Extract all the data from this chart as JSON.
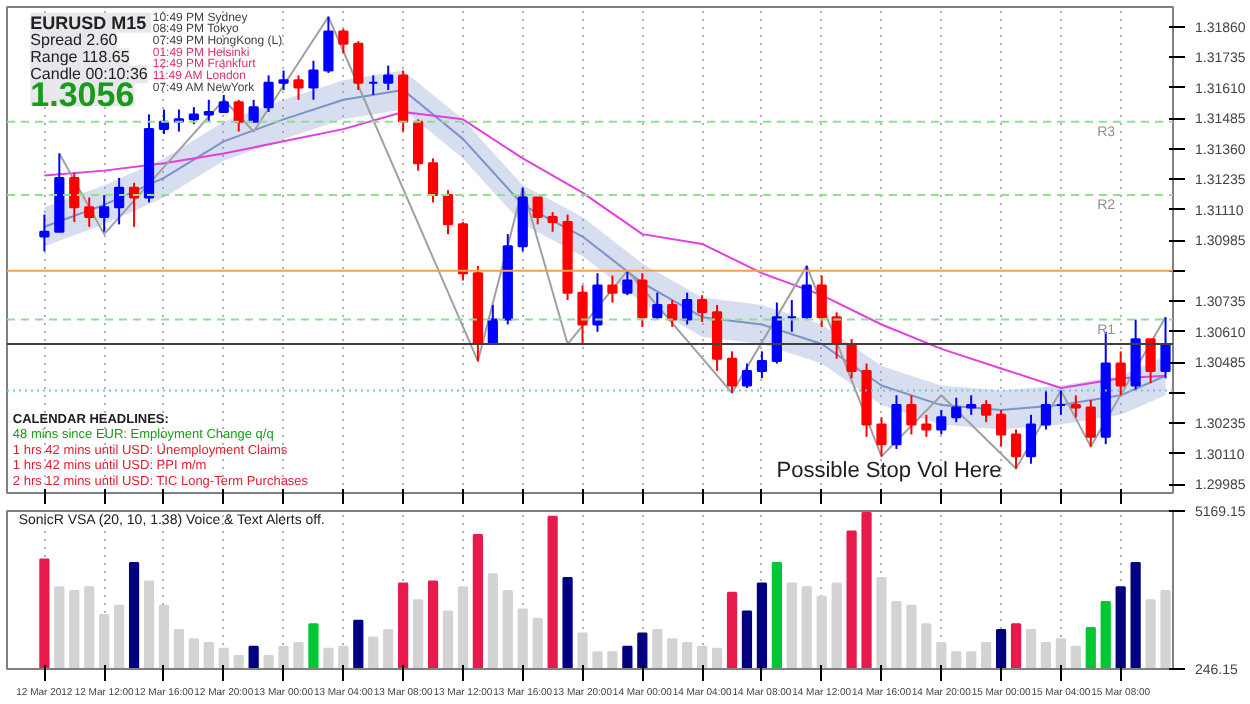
{
  "chart_data": [
    {
      "type": "candlestick",
      "title": "EURUSD  M15",
      "annotations": [
        "Spread 2.60",
        "Range 118.65",
        "Candle 00:10:36",
        "1.3056",
        "10:49 PM Sydney",
        "08:49 PM Tokyo",
        "07:49 PM HongKong (L)",
        "01:49 PM Helsinki",
        "12:49 PM Frankfurt",
        "11:49 AM London",
        "07:49 AM NewYork",
        "CALENDAR HEADLINES:",
        "48 mins since EUR: Employment Change q/q",
        "1 hrs 42 mins until USD: Unemployment Claims",
        "1 hrs 42 mins until USD: PPI m/m",
        "2 hrs 12 mins until USD: TIC Long-Term Purchases",
        "Possible Stop Vol Here"
      ],
      "x": [
        "2012-03-12T08:00",
        "2012-03-12T09:00",
        "2012-03-12T10:00",
        "2012-03-12T11:00",
        "2012-03-12T12:00",
        "2012-03-12T13:00",
        "2012-03-12T14:00",
        "2012-03-12T15:00",
        "2012-03-12T16:00",
        "2012-03-12T17:00",
        "2012-03-12T18:00",
        "2012-03-12T19:00",
        "2012-03-12T20:00",
        "2012-03-12T21:00",
        "2012-03-12T22:00",
        "2012-03-12T23:00",
        "2012-03-13T00:00",
        "2012-03-13T01:00",
        "2012-03-13T02:00",
        "2012-03-13T03:00",
        "2012-03-13T04:00",
        "2012-03-13T05:00",
        "2012-03-13T06:00",
        "2012-03-13T07:00",
        "2012-03-13T08:00",
        "2012-03-13T09:00",
        "2012-03-13T10:00",
        "2012-03-13T11:00",
        "2012-03-13T12:00",
        "2012-03-13T13:00",
        "2012-03-13T14:00",
        "2012-03-13T15:00",
        "2012-03-13T16:00",
        "2012-03-13T17:00",
        "2012-03-13T18:00",
        "2012-03-13T19:00",
        "2012-03-13T20:00",
        "2012-03-13T21:00",
        "2012-03-13T22:00",
        "2012-03-13T23:00",
        "2012-03-14T00:00",
        "2012-03-14T01:00",
        "2012-03-14T02:00",
        "2012-03-14T03:00",
        "2012-03-14T04:00",
        "2012-03-14T05:00",
        "2012-03-14T06:00",
        "2012-03-14T07:00",
        "2012-03-14T08:00",
        "2012-03-14T09:00",
        "2012-03-14T10:00",
        "2012-03-14T11:00",
        "2012-03-14T12:00",
        "2012-03-14T13:00",
        "2012-03-14T14:00",
        "2012-03-14T15:00",
        "2012-03-14T16:00",
        "2012-03-14T17:00",
        "2012-03-14T18:00",
        "2012-03-14T19:00",
        "2012-03-14T20:00",
        "2012-03-14T21:00",
        "2012-03-14T22:00",
        "2012-03-14T23:00",
        "2012-03-15T00:00",
        "2012-03-15T01:00",
        "2012-03-15T02:00",
        "2012-03-15T03:00",
        "2012-03-15T04:00",
        "2012-03-15T05:00",
        "2012-03-15T06:00",
        "2012-03-15T07:00",
        "2012-03-15T08:00",
        "2012-03-15T09:00",
        "2012-03-15T10:00",
        "2012-03-15T11:00"
      ],
      "ohlc": [
        [
          1.31,
          1.3109,
          1.3094,
          1.3102
        ],
        [
          1.3102,
          1.3134,
          1.3102,
          1.3124
        ],
        [
          1.3124,
          1.3126,
          1.3106,
          1.3112
        ],
        [
          1.3112,
          1.3116,
          1.3104,
          1.3108
        ],
        [
          1.3108,
          1.3117,
          1.3102,
          1.3112
        ],
        [
          1.3112,
          1.3124,
          1.3105,
          1.312
        ],
        [
          1.312,
          1.3122,
          1.3104,
          1.3116
        ],
        [
          1.3116,
          1.315,
          1.3114,
          1.3144
        ],
        [
          1.3144,
          1.3152,
          1.3142,
          1.3147
        ],
        [
          1.3147,
          1.3152,
          1.3143,
          1.3148
        ],
        [
          1.3148,
          1.3153,
          1.3146,
          1.315
        ],
        [
          1.315,
          1.3156,
          1.3147,
          1.3151
        ],
        [
          1.3151,
          1.3158,
          1.3151,
          1.3155
        ],
        [
          1.3155,
          1.3156,
          1.3143,
          1.3147
        ],
        [
          1.3147,
          1.3156,
          1.3147,
          1.3153
        ],
        [
          1.3153,
          1.3166,
          1.3151,
          1.3163
        ],
        [
          1.3163,
          1.3168,
          1.316,
          1.3164
        ],
        [
          1.3164,
          1.3166,
          1.3156,
          1.3161
        ],
        [
          1.3161,
          1.3172,
          1.3156,
          1.3168
        ],
        [
          1.3168,
          1.319,
          1.3167,
          1.3184
        ],
        [
          1.3184,
          1.3185,
          1.3175,
          1.3179
        ],
        [
          1.3179,
          1.318,
          1.316,
          1.3163
        ],
        [
          1.3163,
          1.3166,
          1.3158,
          1.3163
        ],
        [
          1.3163,
          1.317,
          1.316,
          1.3166
        ],
        [
          1.3166,
          1.3168,
          1.3143,
          1.3147
        ],
        [
          1.3147,
          1.3148,
          1.3127,
          1.313
        ],
        [
          1.313,
          1.3132,
          1.3114,
          1.3117
        ],
        [
          1.3117,
          1.3119,
          1.3101,
          1.3105
        ],
        [
          1.3105,
          1.3106,
          1.3082,
          1.3085
        ],
        [
          1.3085,
          1.3088,
          1.3049,
          1.3056
        ],
        [
          1.3056,
          1.3072,
          1.3056,
          1.3066
        ],
        [
          1.3066,
          1.3101,
          1.3064,
          1.3096
        ],
        [
          1.3096,
          1.312,
          1.3094,
          1.3116
        ],
        [
          1.3116,
          1.3116,
          1.3105,
          1.3108
        ],
        [
          1.3108,
          1.311,
          1.3102,
          1.3106
        ],
        [
          1.3106,
          1.3109,
          1.3074,
          1.3077
        ],
        [
          1.3077,
          1.308,
          1.3056,
          1.3064
        ],
        [
          1.3064,
          1.3085,
          1.3061,
          1.308
        ],
        [
          1.308,
          1.3084,
          1.3073,
          1.3077
        ],
        [
          1.3077,
          1.3086,
          1.3076,
          1.3082
        ],
        [
          1.3082,
          1.3085,
          1.3063,
          1.3067
        ],
        [
          1.3067,
          1.3077,
          1.3066,
          1.3072
        ],
        [
          1.3072,
          1.3074,
          1.3063,
          1.3066
        ],
        [
          1.3066,
          1.3077,
          1.3064,
          1.3074
        ],
        [
          1.3074,
          1.3076,
          1.3065,
          1.3069
        ],
        [
          1.3069,
          1.3072,
          1.3045,
          1.305
        ],
        [
          1.305,
          1.3053,
          1.3036,
          1.3039
        ],
        [
          1.3039,
          1.3048,
          1.3038,
          1.3045
        ],
        [
          1.3045,
          1.3053,
          1.3042,
          1.3049
        ],
        [
          1.3049,
          1.3073,
          1.3048,
          1.3067
        ],
        [
          1.3067,
          1.3074,
          1.3061,
          1.3067
        ],
        [
          1.3067,
          1.3088,
          1.3066,
          1.308
        ],
        [
          1.308,
          1.3084,
          1.3063,
          1.3067
        ],
        [
          1.3067,
          1.3069,
          1.305,
          1.3056
        ],
        [
          1.3056,
          1.3058,
          1.3042,
          1.3045
        ],
        [
          1.3045,
          1.3048,
          1.3018,
          1.3023
        ],
        [
          1.3023,
          1.3026,
          1.301,
          1.3015
        ],
        [
          1.3015,
          1.3035,
          1.3013,
          1.3031
        ],
        [
          1.3031,
          1.3035,
          1.3019,
          1.3023
        ],
        [
          1.3023,
          1.3027,
          1.3018,
          1.3021
        ],
        [
          1.3021,
          1.3029,
          1.3019,
          1.3026
        ],
        [
          1.3026,
          1.3034,
          1.3024,
          1.303
        ],
        [
          1.303,
          1.3035,
          1.3027,
          1.3031
        ],
        [
          1.3031,
          1.3033,
          1.3024,
          1.3027
        ],
        [
          1.3027,
          1.3029,
          1.3014,
          1.3019
        ],
        [
          1.3019,
          1.3021,
          1.3005,
          1.301
        ],
        [
          1.301,
          1.3027,
          1.3007,
          1.3023
        ],
        [
          1.3023,
          1.3037,
          1.3021,
          1.3031
        ],
        [
          1.3031,
          1.3037,
          1.3027,
          1.3031
        ],
        [
          1.3031,
          1.3035,
          1.3026,
          1.303
        ],
        [
          1.303,
          1.3033,
          1.3014,
          1.3018
        ],
        [
          1.3018,
          1.3061,
          1.3015,
          1.3048
        ],
        [
          1.3048,
          1.3053,
          1.3035,
          1.3039
        ],
        [
          1.3039,
          1.3066,
          1.3037,
          1.3058
        ],
        [
          1.3058,
          1.3058,
          1.304,
          1.3045
        ],
        [
          1.3045,
          1.3067,
          1.3042,
          1.3056
        ]
      ],
      "colors": [
        "#0000ff",
        "#0000ff",
        "#ff0000",
        "#ff0000",
        "#0000ff",
        "#0000ff",
        "#ff0000",
        "#0000ff",
        "#0000ff",
        "#0000ff",
        "#0000ff",
        "#0000ff",
        "#0000ff",
        "#ff0000",
        "#0000ff",
        "#0000ff",
        "#0000ff",
        "#ff0000",
        "#0000ff",
        "#0000ff",
        "#ff0000",
        "#ff0000",
        "#0000ff",
        "#0000ff",
        "#ff0000",
        "#ff0000",
        "#ff0000",
        "#ff0000",
        "#ff0000",
        "#ff0000",
        "#0000ff",
        "#0000ff",
        "#0000ff",
        "#ff0000",
        "#ff0000",
        "#ff0000",
        "#ff0000",
        "#0000ff",
        "#ff0000",
        "#0000ff",
        "#ff0000",
        "#0000ff",
        "#ff0000",
        "#0000ff",
        "#ff0000",
        "#ff0000",
        "#ff0000",
        "#0000ff",
        "#0000ff",
        "#0000ff",
        "#0000ff",
        "#0000ff",
        "#ff0000",
        "#ff0000",
        "#ff0000",
        "#ff0000",
        "#ff0000",
        "#0000ff",
        "#ff0000",
        "#ff0000",
        "#0000ff",
        "#0000ff",
        "#0000ff",
        "#ff0000",
        "#ff0000",
        "#ff0000",
        "#0000ff",
        "#0000ff",
        "#0000ff",
        "#ff0000",
        "#ff0000",
        "#0000ff",
        "#ff0000",
        "#0000ff",
        "#ff0000",
        "#0000ff"
      ],
      "series": [
        {
          "type": "line",
          "color": "#7b93c9",
          "x": [
            "2012-03-12T08:00",
            "2012-03-12T12:00",
            "2012-03-12T16:00",
            "2012-03-12T20:00",
            "2012-03-13T00:00",
            "2012-03-13T04:00",
            "2012-03-13T08:00",
            "2012-03-13T12:00",
            "2012-03-13T16:00",
            "2012-03-13T20:00",
            "2012-03-14T00:00",
            "2012-03-14T04:00",
            "2012-03-14T08:00",
            "2012-03-14T12:00",
            "2012-03-14T16:00",
            "2012-03-14T20:00",
            "2012-03-15T00:00",
            "2012-03-15T04:00",
            "2012-03-15T08:00",
            "2012-03-15T11:00"
          ],
          "values": [
            1.3104,
            1.3113,
            1.3124,
            1.3139,
            1.3148,
            1.3156,
            1.316,
            1.314,
            1.3113,
            1.31,
            1.3081,
            1.3067,
            1.3064,
            1.3056,
            1.3039,
            1.3031,
            1.3029,
            1.3031,
            1.3035,
            1.3043
          ],
          "lower": [
            1.3096,
            1.3105,
            1.3116,
            1.3131,
            1.314,
            1.3148,
            1.3152,
            1.3132,
            1.3105,
            1.3092,
            1.3073,
            1.3059,
            1.3056,
            1.3048,
            1.3031,
            1.3023,
            1.3021,
            1.3023,
            1.3027,
            1.3035
          ],
          "upper": [
            1.3112,
            1.3121,
            1.3132,
            1.3147,
            1.3156,
            1.3164,
            1.3168,
            1.3148,
            1.3121,
            1.3108,
            1.3089,
            1.3075,
            1.3072,
            1.3064,
            1.3047,
            1.3039,
            1.3037,
            1.3039,
            1.3043,
            1.3051
          ]
        },
        {
          "type": "line",
          "color": "#e040e0",
          "x": [
            "2012-03-12T08:00",
            "2012-03-12T12:00",
            "2012-03-12T16:00",
            "2012-03-12T20:00",
            "2012-03-13T00:00",
            "2012-03-13T04:00",
            "2012-03-13T08:00",
            "2012-03-13T12:00",
            "2012-03-13T16:00",
            "2012-03-13T20:00",
            "2012-03-14T00:00",
            "2012-03-14T04:00",
            "2012-03-14T08:00",
            "2012-03-14T12:00",
            "2012-03-14T16:00",
            "2012-03-14T20:00",
            "2012-03-15T00:00",
            "2012-03-15T04:00",
            "2012-03-15T08:00",
            "2012-03-15T11:00"
          ],
          "values": [
            1.3125,
            1.3127,
            1.313,
            1.3134,
            1.3139,
            1.3144,
            1.3151,
            1.3148,
            1.3132,
            1.3118,
            1.3101,
            1.3097,
            1.3085,
            1.3076,
            1.3064,
            1.3054,
            1.3046,
            1.3038,
            1.3042,
            1.3043
          ]
        },
        {
          "type": "line",
          "color": "#a0a0a0",
          "x": [
            "2012-03-12T09:00",
            "2012-03-12T12:00",
            "2012-03-12T20:00",
            "2012-03-12T22:00",
            "2012-03-13T03:00",
            "2012-03-13T13:00",
            "2012-03-13T16:00",
            "2012-03-13T19:00",
            "2012-03-13T23:00",
            "2012-03-14T06:00",
            "2012-03-14T11:00",
            "2012-03-14T16:00",
            "2012-03-14T20:00",
            "2012-03-15T01:00",
            "2012-03-15T04:00",
            "2012-03-15T06:00",
            "2012-03-15T11:00"
          ],
          "values": [
            1.3134,
            1.3101,
            1.3156,
            1.3143,
            1.319,
            1.3049,
            1.312,
            1.3056,
            1.3086,
            1.3036,
            1.3088,
            1.301,
            1.3035,
            1.3005,
            1.3037,
            1.3014,
            1.3067
          ]
        }
      ],
      "ref_lines": [
        {
          "axis": "y",
          "value": 1.3147,
          "label": "R3",
          "color": "#90e090",
          "line_style": "dashed"
        },
        {
          "axis": "y",
          "value": 1.3117,
          "label": "R2",
          "color": "#90e090",
          "line_style": "dashed"
        },
        {
          "axis": "y",
          "value": 1.3086,
          "color": "#f0a050"
        },
        {
          "axis": "y",
          "value": 1.3066,
          "label": "R1",
          "color": "#90e090",
          "line_style": "dashed"
        },
        {
          "axis": "y",
          "value": 1.3056,
          "color": "#404040"
        },
        {
          "axis": "y",
          "value": 1.3037,
          "color": "#70c8e0",
          "line_style": "dotted"
        }
      ],
      "xlim": [
        "2012-03-12T05:30",
        "2012-03-15T11:30"
      ],
      "ylim": [
        1.2995,
        1.3194
      ],
      "xticks": [
        {
          "value": "2012-03-12T08:00",
          "label": null
        },
        {
          "value": "2012-03-12T12:00",
          "label": null
        },
        {
          "value": "2012-03-12T16:00",
          "label": null
        },
        {
          "value": "2012-03-12T20:00",
          "label": null
        },
        {
          "value": "2012-03-13T00:00",
          "label": null
        },
        {
          "value": "2012-03-13T04:00",
          "label": null
        },
        {
          "value": "2012-03-13T08:00",
          "label": null
        },
        {
          "value": "2012-03-13T12:00",
          "label": null
        },
        {
          "value": "2012-03-13T16:00",
          "label": null
        },
        {
          "value": "2012-03-13T20:00",
          "label": null
        },
        {
          "value": "2012-03-14T00:00",
          "label": null
        },
        {
          "value": "2012-03-14T04:00",
          "label": null
        },
        {
          "value": "2012-03-14T08:00",
          "label": null
        },
        {
          "value": "2012-03-14T12:00",
          "label": null
        },
        {
          "value": "2012-03-14T16:00",
          "label": null
        },
        {
          "value": "2012-03-14T20:00",
          "label": null
        },
        {
          "value": "2012-03-15T00:00",
          "label": null
        },
        {
          "value": "2012-03-15T04:00",
          "label": null
        },
        {
          "value": "2012-03-15T08:00",
          "label": null
        }
      ],
      "yticks": [
        {
          "value": 1.3186,
          "label": "1.31860"
        },
        {
          "value": 1.31735,
          "label": "1.31735"
        },
        {
          "value": 1.3161,
          "label": "1.31610"
        },
        {
          "value": 1.31485,
          "label": "1.31485"
        },
        {
          "value": 1.3136,
          "label": "1.31360"
        },
        {
          "value": 1.31235,
          "label": "1.31235"
        },
        {
          "value": 1.3111,
          "label": "1.31110"
        },
        {
          "value": 1.30985,
          "label": "1.30985"
        },
        {
          "value": 1.3086,
          "label": null
        },
        {
          "value": 1.30735,
          "label": "1.30735"
        },
        {
          "value": 1.3061,
          "label": "1.30610"
        },
        {
          "value": 1.30485,
          "label": "1.30485"
        },
        {
          "value": 1.3036,
          "label": null
        },
        {
          "value": 1.30235,
          "label": "1.30235"
        },
        {
          "value": 1.3011,
          "label": "1.30110"
        },
        {
          "value": 1.29985,
          "label": "1.29985"
        }
      ],
      "tick_labels": "y",
      "grid": "x"
    },
    {
      "type": "bar",
      "title": "SonicR VSA (20, 10, 1.38)  Voice & Text Alerts off.",
      "x": [
        "2012-03-12T08:00",
        "2012-03-12T09:00",
        "2012-03-12T10:00",
        "2012-03-12T11:00",
        "2012-03-12T12:00",
        "2012-03-12T13:00",
        "2012-03-12T14:00",
        "2012-03-12T15:00",
        "2012-03-12T16:00",
        "2012-03-12T17:00",
        "2012-03-12T18:00",
        "2012-03-12T19:00",
        "2012-03-12T20:00",
        "2012-03-12T21:00",
        "2012-03-12T22:00",
        "2012-03-12T23:00",
        "2012-03-13T00:00",
        "2012-03-13T01:00",
        "2012-03-13T02:00",
        "2012-03-13T03:00",
        "2012-03-13T04:00",
        "2012-03-13T05:00",
        "2012-03-13T06:00",
        "2012-03-13T07:00",
        "2012-03-13T08:00",
        "2012-03-13T09:00",
        "2012-03-13T10:00",
        "2012-03-13T11:00",
        "2012-03-13T12:00",
        "2012-03-13T13:00",
        "2012-03-13T14:00",
        "2012-03-13T15:00",
        "2012-03-13T16:00",
        "2012-03-13T17:00",
        "2012-03-13T18:00",
        "2012-03-13T19:00",
        "2012-03-13T20:00",
        "2012-03-13T21:00",
        "2012-03-13T22:00",
        "2012-03-13T23:00",
        "2012-03-14T00:00",
        "2012-03-14T01:00",
        "2012-03-14T02:00",
        "2012-03-14T03:00",
        "2012-03-14T04:00",
        "2012-03-14T05:00",
        "2012-03-14T06:00",
        "2012-03-14T07:00",
        "2012-03-14T08:00",
        "2012-03-14T09:00",
        "2012-03-14T10:00",
        "2012-03-14T11:00",
        "2012-03-14T12:00",
        "2012-03-14T13:00",
        "2012-03-14T14:00",
        "2012-03-14T15:00",
        "2012-03-14T16:00",
        "2012-03-14T17:00",
        "2012-03-14T18:00",
        "2012-03-14T19:00",
        "2012-03-14T20:00",
        "2012-03-14T21:00",
        "2012-03-14T22:00",
        "2012-03-14T23:00",
        "2012-03-15T00:00",
        "2012-03-15T01:00",
        "2012-03-15T02:00",
        "2012-03-15T03:00",
        "2012-03-15T04:00",
        "2012-03-15T05:00",
        "2012-03-15T06:00",
        "2012-03-15T07:00",
        "2012-03-15T08:00",
        "2012-03-15T09:00",
        "2012-03-15T10:00",
        "2012-03-15T11:00"
      ],
      "values": [
        3660,
        2790,
        2680,
        2790,
        1930,
        2220,
        3550,
        2970,
        2220,
        1460,
        1170,
        1060,
        880,
        650,
        940,
        650,
        940,
        1060,
        1640,
        880,
        940,
        1750,
        1230,
        1460,
        2910,
        2390,
        2970,
        2040,
        2790,
        4420,
        3200,
        2680,
        2100,
        1810,
        4990,
        3080,
        1350,
        770,
        770,
        940,
        1350,
        1460,
        1170,
        1060,
        940,
        880,
        2620,
        2040,
        2910,
        3550,
        2910,
        2790,
        2500,
        2910,
        4530,
        5110,
        3080,
        2330,
        2220,
        1640,
        1060,
        770,
        770,
        1060,
        1460,
        1640,
        1460,
        1060,
        1170,
        940,
        1520,
        2330,
        2790,
        3550,
        2390,
        2680
      ],
      "colors": [
        "#e8194b",
        "#d3d3d3",
        "#d3d3d3",
        "#d3d3d3",
        "#d3d3d3",
        "#d3d3d3",
        "#000080",
        "#d3d3d3",
        "#d3d3d3",
        "#d3d3d3",
        "#d3d3d3",
        "#d3d3d3",
        "#d3d3d3",
        "#d3d3d3",
        "#000080",
        "#d3d3d3",
        "#d3d3d3",
        "#d3d3d3",
        "#00c832",
        "#d3d3d3",
        "#d3d3d3",
        "#000080",
        "#d3d3d3",
        "#d3d3d3",
        "#e8194b",
        "#d3d3d3",
        "#e8194b",
        "#d3d3d3",
        "#d3d3d3",
        "#e8194b",
        "#d3d3d3",
        "#d3d3d3",
        "#d3d3d3",
        "#d3d3d3",
        "#e8194b",
        "#000080",
        "#d3d3d3",
        "#d3d3d3",
        "#d3d3d3",
        "#000080",
        "#000080",
        "#d3d3d3",
        "#d3d3d3",
        "#d3d3d3",
        "#d3d3d3",
        "#d3d3d3",
        "#e8194b",
        "#000080",
        "#000080",
        "#00c832",
        "#d3d3d3",
        "#d3d3d3",
        "#d3d3d3",
        "#d3d3d3",
        "#e8194b",
        "#e8194b",
        "#d3d3d3",
        "#d3d3d3",
        "#d3d3d3",
        "#d3d3d3",
        "#d3d3d3",
        "#d3d3d3",
        "#d3d3d3",
        "#d3d3d3",
        "#000080",
        "#e8194b",
        "#d3d3d3",
        "#d3d3d3",
        "#d3d3d3",
        "#d3d3d3",
        "#00c832",
        "#00c832",
        "#000080",
        "#000080",
        "#d3d3d3",
        "#d3d3d3"
      ],
      "xlim": [
        "2012-03-12T05:30",
        "2012-03-15T11:30"
      ],
      "ylim": [
        246.15,
        5169.15
      ],
      "xticks": [
        {
          "value": "2012-03-12T08:00",
          "label": "12 Mar 2012"
        },
        {
          "value": "2012-03-12T12:00",
          "label": "12 Mar 12:00"
        },
        {
          "value": "2012-03-12T16:00",
          "label": "12 Mar 16:00"
        },
        {
          "value": "2012-03-12T20:00",
          "label": "12 Mar 20:00"
        },
        {
          "value": "2012-03-13T00:00",
          "label": "13 Mar 00:00"
        },
        {
          "value": "2012-03-13T04:00",
          "label": "13 Mar 04:00"
        },
        {
          "value": "2012-03-13T08:00",
          "label": "13 Mar 08:00"
        },
        {
          "value": "2012-03-13T12:00",
          "label": "13 Mar 12:00"
        },
        {
          "value": "2012-03-13T16:00",
          "label": "13 Mar 16:00"
        },
        {
          "value": "2012-03-13T20:00",
          "label": "13 Mar 20:00"
        },
        {
          "value": "2012-03-14T00:00",
          "label": "14 Mar 00:00"
        },
        {
          "value": "2012-03-14T04:00",
          "label": "14 Mar 04:00"
        },
        {
          "value": "2012-03-14T08:00",
          "label": "14 Mar 08:00"
        },
        {
          "value": "2012-03-14T12:00",
          "label": "14 Mar 12:00"
        },
        {
          "value": "2012-03-14T16:00",
          "label": "14 Mar 16:00"
        },
        {
          "value": "2012-03-14T20:00",
          "label": "14 Mar 20:00"
        },
        {
          "value": "2012-03-15T00:00",
          "label": "15 Mar 00:00"
        },
        {
          "value": "2012-03-15T04:00",
          "label": "15 Mar 04:00"
        },
        {
          "value": "2012-03-15T08:00",
          "label": "15 Mar 08:00"
        }
      ],
      "yticks": [
        246.15,
        5169.15
      ],
      "grid": "x"
    }
  ]
}
